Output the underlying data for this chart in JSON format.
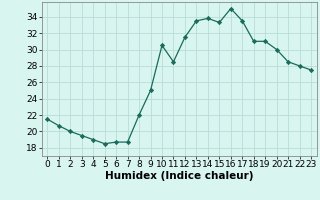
{
  "x": [
    0,
    1,
    2,
    3,
    4,
    5,
    6,
    7,
    8,
    9,
    10,
    11,
    12,
    13,
    14,
    15,
    16,
    17,
    18,
    19,
    20,
    21,
    22,
    23
  ],
  "y": [
    21.5,
    20.7,
    20.0,
    19.5,
    19.0,
    18.5,
    18.7,
    18.7,
    22.0,
    25.0,
    30.5,
    28.5,
    31.5,
    33.5,
    33.8,
    33.3,
    35.0,
    33.5,
    31.0,
    31.0,
    30.0,
    28.5,
    28.0,
    27.5
  ],
  "line_color": "#1a6b5a",
  "marker": "D",
  "marker_size": 2.2,
  "bg_color": "#d8f5f0",
  "grid_color": "#b8ddd8",
  "xlabel": "Humidex (Indice chaleur)",
  "xlim": [
    -0.5,
    23.5
  ],
  "ylim": [
    17,
    35.8
  ],
  "yticks": [
    18,
    20,
    22,
    24,
    26,
    28,
    30,
    32,
    34
  ],
  "xticks": [
    0,
    1,
    2,
    3,
    4,
    5,
    6,
    7,
    8,
    9,
    10,
    11,
    12,
    13,
    14,
    15,
    16,
    17,
    18,
    19,
    20,
    21,
    22,
    23
  ],
  "xlabel_fontsize": 7.5,
  "tick_fontsize": 6.5
}
